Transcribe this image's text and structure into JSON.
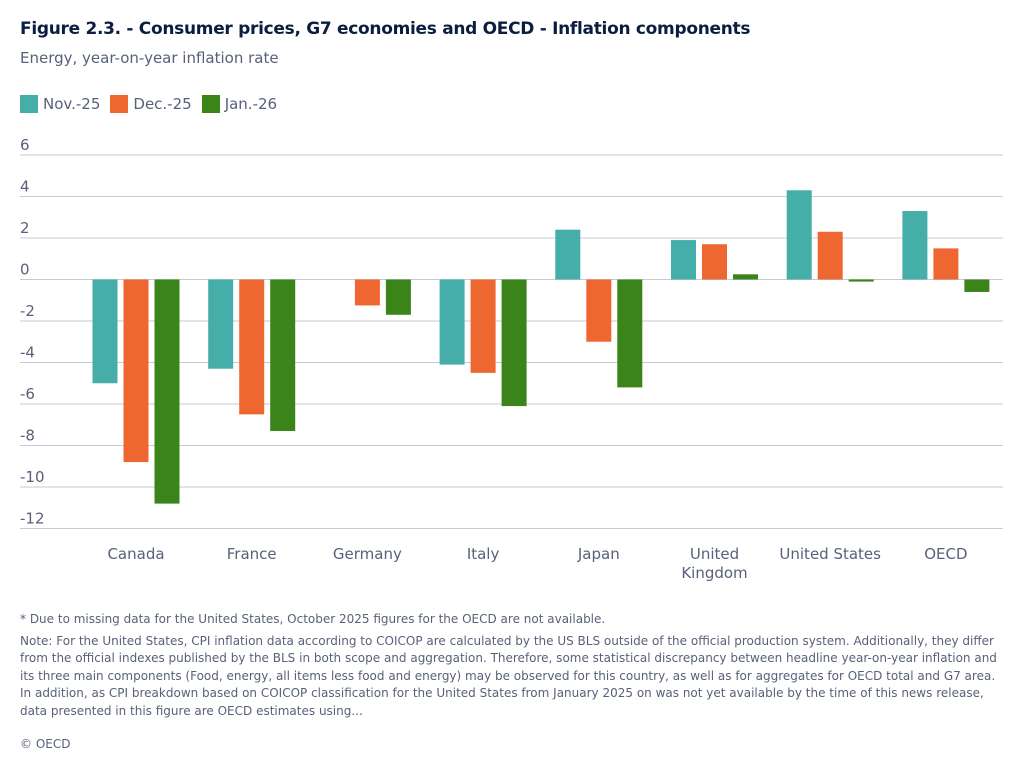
{
  "chart_data": {
    "type": "bar",
    "title": "Figure 2.3. - Consumer prices, G7 economies and OECD - Inflation components",
    "subtitle": "Energy, year-on-year inflation rate",
    "categories": [
      "Canada",
      "France",
      "Germany",
      "Italy",
      "Japan",
      "United Kingdom",
      "United States",
      "OECD"
    ],
    "category_lines": [
      [
        "Canada"
      ],
      [
        "France"
      ],
      [
        "Germany"
      ],
      [
        "Italy"
      ],
      [
        "Japan"
      ],
      [
        "United",
        "Kingdom"
      ],
      [
        "United States"
      ],
      [
        "OECD"
      ]
    ],
    "series": [
      {
        "name": "Nov.-25",
        "color": "#45aea8",
        "values": [
          -5.0,
          -4.3,
          null,
          -4.1,
          2.4,
          1.9,
          4.3,
          3.3
        ]
      },
      {
        "name": "Dec.-25",
        "color": "#ee6730",
        "values": [
          -8.8,
          -6.5,
          -1.25,
          -4.5,
          -3.0,
          1.7,
          2.3,
          1.5
        ]
      },
      {
        "name": "Jan.-26",
        "color": "#3a8419",
        "values": [
          -10.8,
          -7.3,
          -1.7,
          -6.1,
          -5.2,
          0.25,
          -0.1,
          -0.6
        ]
      }
    ],
    "ylim": [
      -12,
      6
    ],
    "yticks": [
      6,
      4,
      2,
      0,
      -2,
      -4,
      -6,
      -8,
      -10,
      -12
    ],
    "grid": true,
    "legend": "top-left"
  },
  "notes": {
    "footnote": "* Due to missing data for the United States, October 2025 figures for the OECD are not available.",
    "note": "Note: For the United States, CPI inflation data according to COICOP are calculated by the US BLS outside of the official production system. Additionally, they differ from the official indexes published by the BLS in both scope and aggregation. Therefore, some statistical discrepancy between headline year-on-year inflation and its three main components (Food, energy, all items less food and energy) may be observed for this country, as well as for aggregates for OECD total and G7 area. In addition, as CPI breakdown based on COICOP classification for the United States from January 2025 on was not yet available by the time of this news release, data presented in this figure are OECD estimates using...",
    "copyright": "© OECD"
  }
}
